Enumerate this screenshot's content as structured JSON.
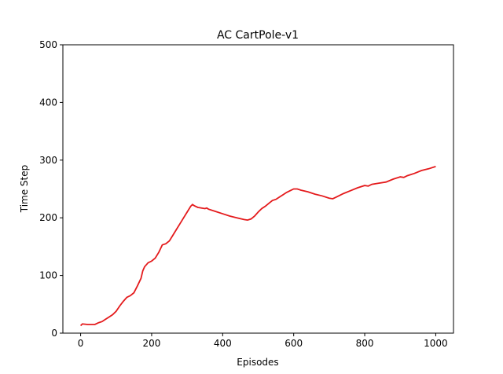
{
  "chart_data": {
    "type": "line",
    "title": "AC CartPole-v1",
    "x_label": "Episodes",
    "y_label": "Time Step",
    "x": [
      0,
      5,
      20,
      40,
      50,
      60,
      70,
      80,
      90,
      100,
      110,
      120,
      130,
      140,
      150,
      160,
      170,
      175,
      180,
      190,
      200,
      210,
      220,
      230,
      240,
      250,
      260,
      270,
      280,
      290,
      300,
      310,
      315,
      320,
      330,
      340,
      350,
      355,
      360,
      380,
      400,
      420,
      440,
      460,
      470,
      480,
      490,
      500,
      510,
      520,
      530,
      540,
      550,
      560,
      570,
      580,
      590,
      600,
      610,
      620,
      640,
      660,
      680,
      700,
      710,
      720,
      740,
      760,
      780,
      800,
      810,
      820,
      840,
      860,
      880,
      900,
      910,
      920,
      940,
      960,
      980,
      1000
    ],
    "series": [
      {
        "name": "Time Step",
        "color": "#e41a1c",
        "values": [
          13,
          16,
          15,
          15,
          18,
          20,
          24,
          28,
          32,
          38,
          47,
          55,
          62,
          65,
          70,
          82,
          95,
          108,
          115,
          122,
          125,
          130,
          140,
          153,
          155,
          160,
          170,
          180,
          190,
          200,
          210,
          220,
          223,
          221,
          218,
          217,
          216,
          217,
          215,
          211,
          207,
          203,
          200,
          197,
          196,
          198,
          203,
          210,
          216,
          220,
          225,
          230,
          232,
          236,
          240,
          244,
          247,
          250,
          250,
          248,
          245,
          241,
          238,
          234,
          233,
          236,
          242,
          247,
          252,
          256,
          255,
          258,
          260,
          262,
          267,
          271,
          270,
          273,
          277,
          282,
          285,
          289
        ]
      }
    ],
    "xlim": [
      -50,
      1050
    ],
    "ylim": [
      0,
      500
    ],
    "xticks": [
      0,
      200,
      400,
      600,
      800,
      1000
    ],
    "yticks": [
      0,
      100,
      200,
      300,
      400,
      500
    ]
  }
}
